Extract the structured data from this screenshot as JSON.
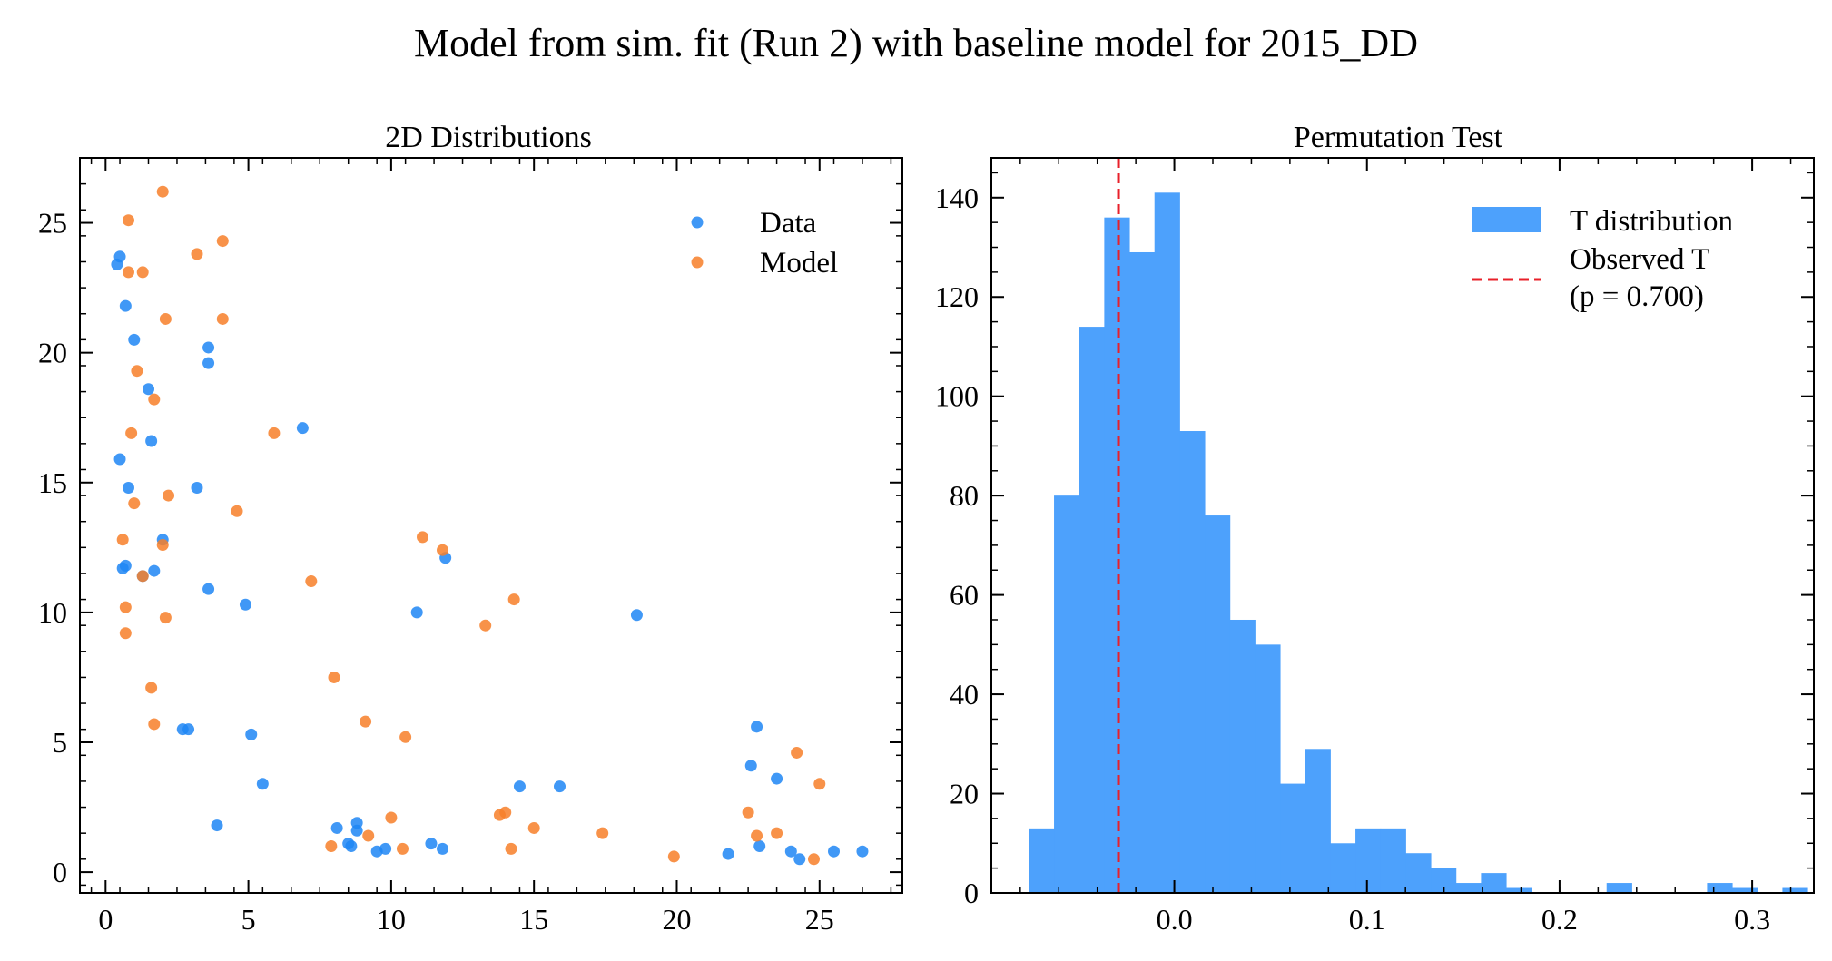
{
  "figure": {
    "suptitle": "Model from sim. fit (Run 2) with baseline model for 2015_DD"
  },
  "chart_data": [
    {
      "type": "scatter",
      "title": "2D Distributions",
      "xlabel": "",
      "ylabel": "",
      "xlim": [
        -0.9,
        27.9
      ],
      "ylim": [
        -0.8,
        27.5
      ],
      "xticks": [
        0,
        5,
        10,
        15,
        20,
        25
      ],
      "yticks": [
        0,
        5,
        10,
        15,
        20,
        25
      ],
      "legend_position": "top-right",
      "series": [
        {
          "name": "Data",
          "color": "#1f86f5",
          "points": [
            [
              0.4,
              23.4
            ],
            [
              0.5,
              23.7
            ],
            [
              0.7,
              21.8
            ],
            [
              1.0,
              20.5
            ],
            [
              0.5,
              15.9
            ],
            [
              0.8,
              14.8
            ],
            [
              0.7,
              11.8
            ],
            [
              0.6,
              11.7
            ],
            [
              1.3,
              11.4
            ],
            [
              1.5,
              18.6
            ],
            [
              1.6,
              16.6
            ],
            [
              1.7,
              11.6
            ],
            [
              2.0,
              12.8
            ],
            [
              3.6,
              20.2
            ],
            [
              3.6,
              19.6
            ],
            [
              3.2,
              14.8
            ],
            [
              3.6,
              10.9
            ],
            [
              2.7,
              5.5
            ],
            [
              2.9,
              5.5
            ],
            [
              4.9,
              10.3
            ],
            [
              5.1,
              5.3
            ],
            [
              5.5,
              3.4
            ],
            [
              3.9,
              1.8
            ],
            [
              6.9,
              17.1
            ],
            [
              8.1,
              1.7
            ],
            [
              8.5,
              1.1
            ],
            [
              8.6,
              1.0
            ],
            [
              8.8,
              1.9
            ],
            [
              8.8,
              1.6
            ],
            [
              9.5,
              0.8
            ],
            [
              9.8,
              0.9
            ],
            [
              10.9,
              10.0
            ],
            [
              11.4,
              1.1
            ],
            [
              11.8,
              0.9
            ],
            [
              11.9,
              12.1
            ],
            [
              14.5,
              3.3
            ],
            [
              15.9,
              3.3
            ],
            [
              18.6,
              9.9
            ],
            [
              21.8,
              0.7
            ],
            [
              22.6,
              4.1
            ],
            [
              22.8,
              5.6
            ],
            [
              22.9,
              1.0
            ],
            [
              23.5,
              3.6
            ],
            [
              24.0,
              0.8
            ],
            [
              24.3,
              0.5
            ],
            [
              25.5,
              0.8
            ],
            [
              26.5,
              0.8
            ]
          ]
        },
        {
          "name": "Model",
          "color": "#f77f29",
          "points": [
            [
              0.8,
              25.1
            ],
            [
              0.8,
              23.1
            ],
            [
              1.3,
              23.1
            ],
            [
              2.0,
              26.2
            ],
            [
              2.1,
              21.3
            ],
            [
              1.1,
              19.3
            ],
            [
              1.7,
              18.2
            ],
            [
              0.9,
              16.9
            ],
            [
              1.0,
              14.2
            ],
            [
              2.2,
              14.5
            ],
            [
              0.6,
              12.8
            ],
            [
              2.0,
              12.6
            ],
            [
              1.3,
              11.4
            ],
            [
              0.7,
              10.2
            ],
            [
              0.7,
              9.2
            ],
            [
              2.1,
              9.8
            ],
            [
              1.6,
              7.1
            ],
            [
              1.7,
              5.7
            ],
            [
              3.2,
              23.8
            ],
            [
              4.1,
              24.3
            ],
            [
              4.1,
              21.3
            ],
            [
              4.6,
              13.9
            ],
            [
              5.9,
              16.9
            ],
            [
              7.2,
              11.2
            ],
            [
              8.0,
              7.5
            ],
            [
              7.9,
              1.0
            ],
            [
              9.1,
              5.8
            ],
            [
              9.2,
              1.4
            ],
            [
              10.0,
              2.1
            ],
            [
              10.4,
              0.9
            ],
            [
              10.5,
              5.2
            ],
            [
              11.1,
              12.9
            ],
            [
              11.8,
              12.4
            ],
            [
              13.3,
              9.5
            ],
            [
              13.8,
              2.2
            ],
            [
              14.0,
              2.3
            ],
            [
              14.2,
              0.9
            ],
            [
              14.3,
              10.5
            ],
            [
              15.0,
              1.7
            ],
            [
              17.4,
              1.5
            ],
            [
              19.9,
              0.6
            ],
            [
              22.5,
              2.3
            ],
            [
              22.8,
              1.4
            ],
            [
              23.5,
              1.5
            ],
            [
              24.2,
              4.6
            ],
            [
              24.8,
              0.5
            ],
            [
              25.0,
              3.4
            ]
          ]
        }
      ]
    },
    {
      "type": "histogram",
      "title": "Permutation Test",
      "xlabel": "",
      "ylabel": "",
      "xlim": [
        -0.095,
        0.332
      ],
      "ylim": [
        0,
        148
      ],
      "xticks": [
        "0.0",
        "0.1",
        "0.2",
        "0.3"
      ],
      "xtick_values": [
        0.0,
        0.1,
        0.2,
        0.3
      ],
      "yticks": [
        0,
        20,
        40,
        60,
        80,
        100,
        120,
        140
      ],
      "legend_position": "top-right",
      "bin_start": -0.0755,
      "bin_width": 0.01304,
      "counts": [
        13,
        80,
        114,
        136,
        129,
        141,
        93,
        76,
        55,
        50,
        22,
        29,
        10,
        13,
        13,
        8,
        5,
        2,
        4,
        1,
        0,
        0,
        0,
        2,
        0,
        0,
        0,
        2,
        1,
        0,
        1
      ],
      "bar_color": "#4da1fc",
      "bar_label": "T distribution",
      "observed_T": -0.029,
      "observed_color": "#e8202a",
      "observed_label_line1": "Observed T",
      "observed_label_line2": "(p = 0.700)"
    }
  ]
}
